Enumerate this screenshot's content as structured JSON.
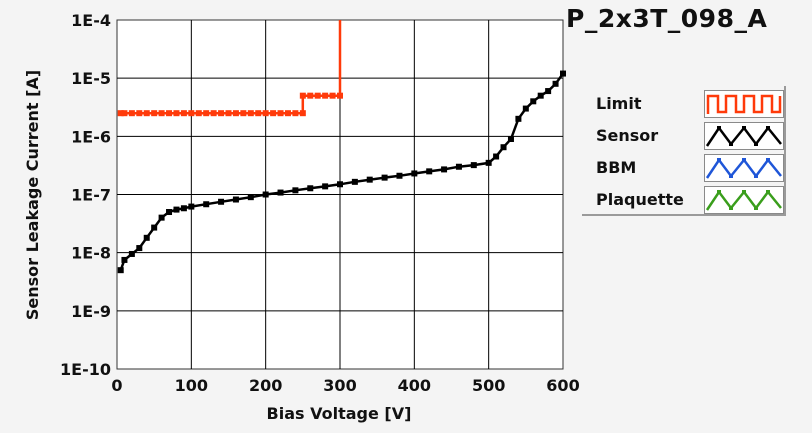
{
  "title": "P_2x3T_098_A",
  "legend": [
    {
      "label": "Limit",
      "color": "#ff3a0a",
      "icon": "square-wave-icon"
    },
    {
      "label": "Sensor",
      "color": "#000000",
      "icon": "triangle-wave-icon"
    },
    {
      "label": "BBM",
      "color": "#1f56d8",
      "icon": "triangle-wave-icon"
    },
    {
      "label": "Plaquette",
      "color": "#3a9e1c",
      "icon": "triangle-wave-icon"
    }
  ],
  "chart_data": {
    "type": "line",
    "title": "P_2x3T_098_A",
    "xlabel": "Bias Voltage [V]",
    "ylabel": "Sensor Leakage Current [A]",
    "xlim": [
      0,
      600
    ],
    "ylim": [
      1e-10,
      0.0001
    ],
    "yscale": "log",
    "grid": true,
    "legend_position": "right",
    "x_ticks": [
      "0",
      "100",
      "200",
      "300",
      "400",
      "500",
      "600"
    ],
    "y_ticks": [
      "1E-4",
      "1E-5",
      "1E-6",
      "1E-7",
      "1E-8",
      "1E-9",
      "1E-10"
    ],
    "series": [
      {
        "name": "Limit",
        "color": "#ff3a0a",
        "x": [
          5,
          10,
          20,
          30,
          40,
          50,
          60,
          70,
          80,
          90,
          100,
          110,
          120,
          130,
          140,
          150,
          160,
          170,
          180,
          190,
          200,
          210,
          220,
          230,
          240,
          250,
          250,
          260,
          270,
          280,
          290,
          300,
          300
        ],
        "y": [
          2.5e-06,
          2.5e-06,
          2.5e-06,
          2.5e-06,
          2.5e-06,
          2.5e-06,
          2.5e-06,
          2.5e-06,
          2.5e-06,
          2.5e-06,
          2.5e-06,
          2.5e-06,
          2.5e-06,
          2.5e-06,
          2.5e-06,
          2.5e-06,
          2.5e-06,
          2.5e-06,
          2.5e-06,
          2.5e-06,
          2.5e-06,
          2.5e-06,
          2.5e-06,
          2.5e-06,
          2.5e-06,
          2.5e-06,
          5e-06,
          5e-06,
          5e-06,
          5e-06,
          5e-06,
          5e-06,
          0.0001
        ]
      },
      {
        "name": "Sensor",
        "color": "#000000",
        "x": [
          5,
          10,
          20,
          30,
          40,
          50,
          60,
          70,
          80,
          90,
          100,
          120,
          140,
          160,
          180,
          200,
          220,
          240,
          260,
          280,
          300,
          320,
          340,
          360,
          380,
          400,
          420,
          440,
          460,
          480,
          500,
          510,
          520,
          530,
          540,
          550,
          560,
          570,
          580,
          590,
          600
        ],
        "y": [
          5e-09,
          7.5e-09,
          9.5e-09,
          1.2e-08,
          1.8e-08,
          2.7e-08,
          4e-08,
          5e-08,
          5.5e-08,
          5.8e-08,
          6.2e-08,
          6.8e-08,
          7.5e-08,
          8.2e-08,
          9e-08,
          1e-07,
          1.08e-07,
          1.18e-07,
          1.28e-07,
          1.38e-07,
          1.5e-07,
          1.65e-07,
          1.8e-07,
          1.95e-07,
          2.1e-07,
          2.3e-07,
          2.5e-07,
          2.7e-07,
          3e-07,
          3.2e-07,
          3.5e-07,
          4.5e-07,
          6.5e-07,
          9e-07,
          2e-06,
          3e-06,
          4e-06,
          5e-06,
          6e-06,
          8e-06,
          1.2e-05
        ]
      }
    ]
  }
}
